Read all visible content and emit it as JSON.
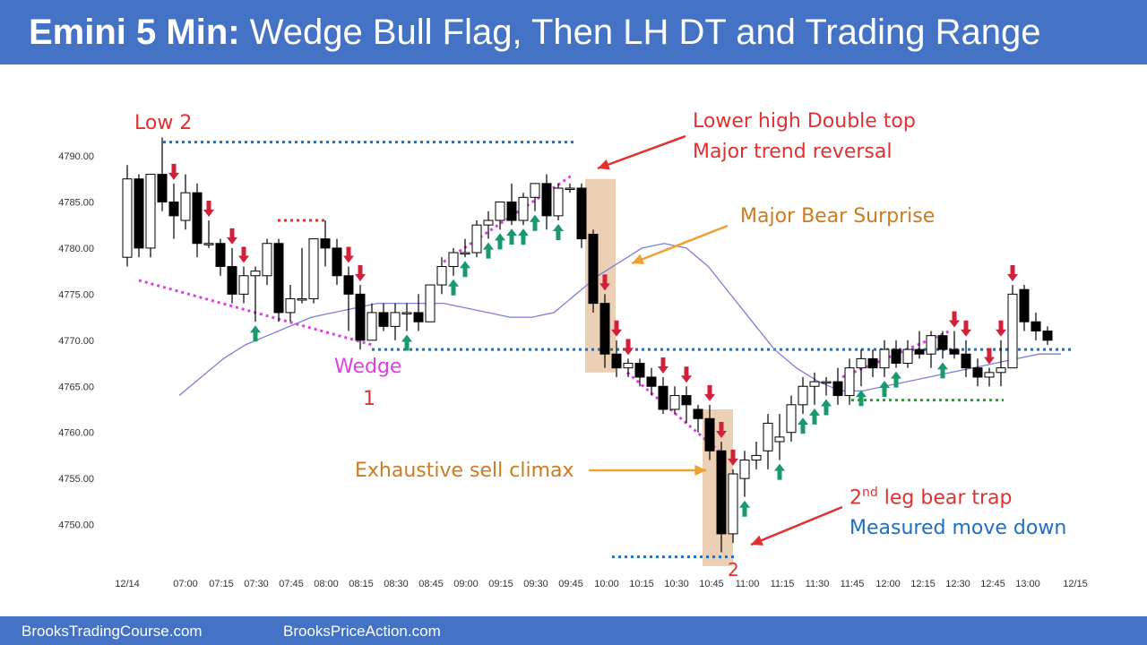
{
  "header": {
    "title_bold": "Emini 5 Min:",
    "title_rest": " Wedge Bull Flag, Then LH DT and Trading Range"
  },
  "footer": {
    "left": "BrooksTradingCourse.com",
    "right": "BrooksPriceAction.com"
  },
  "annotations": {
    "low2": "Low 2",
    "lower_high_1": "Lower high Double top",
    "lower_high_2": "Major trend reversal",
    "bear_surprise": "Major Bear Surprise",
    "wedge": "Wedge",
    "wedge_num": "1",
    "sell_climax": "Exhaustive sell climax",
    "bear_trap_pre": "2",
    "bear_trap_sup": "nd",
    "bear_trap_post": " leg bear trap",
    "measured_move": "Measured move down",
    "leg2_num": "2"
  },
  "colors": {
    "header": "#4472c4",
    "bull_arrow": "#1a9a6a",
    "bear_arrow": "#d0203a",
    "ema": "#7b7fd4",
    "wedge_line": "#e040e0",
    "level_line": "#1f6fbf",
    "support_line": "#2aa02a",
    "highlight": "#e8c8a8"
  },
  "chart_data": {
    "type": "candlestick",
    "title": "Emini 5 Min",
    "ylim": [
      4746,
      4793
    ],
    "yticks": [
      "4790.00",
      "4785.00",
      "4780.00",
      "4775.00",
      "4770.00",
      "4765.00",
      "4760.00",
      "4755.00",
      "4750.00"
    ],
    "xticks": [
      "12/14",
      "07:00",
      "07:15",
      "07:30",
      "07:45",
      "08:00",
      "08:15",
      "08:30",
      "08:45",
      "09:00",
      "09:15",
      "09:30",
      "09:45",
      "10:00",
      "10:15",
      "10:30",
      "10:45",
      "11:00",
      "11:15",
      "11:30",
      "11:45",
      "12:00",
      "12:15",
      "12:30",
      "12:45",
      "13:00",
      "12/15"
    ],
    "candles": [
      {
        "o": 4779,
        "h": 4789,
        "l": 4778,
        "c": 4787.5
      },
      {
        "o": 4787.5,
        "h": 4788,
        "l": 4779,
        "c": 4780
      },
      {
        "o": 4780,
        "h": 4788,
        "l": 4779,
        "c": 4788
      },
      {
        "o": 4788,
        "h": 4792,
        "l": 4784,
        "c": 4785
      },
      {
        "o": 4785,
        "h": 4787,
        "l": 4781,
        "c": 4783.5
      },
      {
        "o": 4783,
        "h": 4788,
        "l": 4782,
        "c": 4786
      },
      {
        "o": 4786,
        "h": 4787,
        "l": 4779,
        "c": 4780.5
      },
      {
        "o": 4780.5,
        "h": 4783,
        "l": 4780,
        "c": 4780.5
      },
      {
        "o": 4780.5,
        "h": 4781,
        "l": 4777,
        "c": 4778
      },
      {
        "o": 4778,
        "h": 4780,
        "l": 4774,
        "c": 4775
      },
      {
        "o": 4775,
        "h": 4778,
        "l": 4774,
        "c": 4777
      },
      {
        "o": 4777,
        "h": 4778,
        "l": 4772,
        "c": 4777.5
      },
      {
        "o": 4777,
        "h": 4781,
        "l": 4776,
        "c": 4780.5
      },
      {
        "o": 4780.5,
        "h": 4781,
        "l": 4772,
        "c": 4773
      },
      {
        "o": 4773,
        "h": 4776,
        "l": 4772,
        "c": 4774.5
      },
      {
        "o": 4774.5,
        "h": 4780,
        "l": 4774,
        "c": 4774.5
      },
      {
        "o": 4774.5,
        "h": 4781,
        "l": 4774,
        "c": 4781
      },
      {
        "o": 4781,
        "h": 4783,
        "l": 4778,
        "c": 4780
      },
      {
        "o": 4780,
        "h": 4781,
        "l": 4776,
        "c": 4777
      },
      {
        "o": 4777,
        "h": 4778,
        "l": 4771,
        "c": 4775
      },
      {
        "o": 4775,
        "h": 4776,
        "l": 4769,
        "c": 4770
      },
      {
        "o": 4770,
        "h": 4774,
        "l": 4770,
        "c": 4773
      },
      {
        "o": 4773,
        "h": 4774,
        "l": 4771,
        "c": 4771.5
      },
      {
        "o": 4771.5,
        "h": 4774,
        "l": 4770,
        "c": 4773
      },
      {
        "o": 4773,
        "h": 4774,
        "l": 4771,
        "c": 4773
      },
      {
        "o": 4773,
        "h": 4775,
        "l": 4771,
        "c": 4772
      },
      {
        "o": 4772,
        "h": 4776,
        "l": 4772,
        "c": 4776
      },
      {
        "o": 4776,
        "h": 4779,
        "l": 4775,
        "c": 4778
      },
      {
        "o": 4778,
        "h": 4780,
        "l": 4777,
        "c": 4779.5
      },
      {
        "o": 4779.5,
        "h": 4781,
        "l": 4779,
        "c": 4779.5
      },
      {
        "o": 4779.5,
        "h": 4783,
        "l": 4779,
        "c": 4782.5
      },
      {
        "o": 4782.5,
        "h": 4784,
        "l": 4781,
        "c": 4783
      },
      {
        "o": 4783,
        "h": 4785,
        "l": 4782,
        "c": 4785
      },
      {
        "o": 4785,
        "h": 4787,
        "l": 4782.5,
        "c": 4783
      },
      {
        "o": 4783,
        "h": 4786,
        "l": 4782.5,
        "c": 4785.5
      },
      {
        "o": 4785.5,
        "h": 4787,
        "l": 4784,
        "c": 4787
      },
      {
        "o": 4787,
        "h": 4788,
        "l": 4782,
        "c": 4783.5
      },
      {
        "o": 4783.5,
        "h": 4787,
        "l": 4783,
        "c": 4786.5
      },
      {
        "o": 4786.5,
        "h": 4787,
        "l": 4786,
        "c": 4786.5
      },
      {
        "o": 4786.5,
        "h": 4787,
        "l": 4780,
        "c": 4781
      },
      {
        "o": 4781.5,
        "h": 4782,
        "l": 4773,
        "c": 4774
      },
      {
        "o": 4774,
        "h": 4775,
        "l": 4767,
        "c": 4768.5
      },
      {
        "o": 4768.5,
        "h": 4770,
        "l": 4766,
        "c": 4767
      },
      {
        "o": 4767,
        "h": 4768,
        "l": 4766,
        "c": 4767.5
      },
      {
        "o": 4767.5,
        "h": 4768,
        "l": 4765,
        "c": 4766
      },
      {
        "o": 4766,
        "h": 4767,
        "l": 4764,
        "c": 4765
      },
      {
        "o": 4765,
        "h": 4766,
        "l": 4762,
        "c": 4762.5
      },
      {
        "o": 4762.5,
        "h": 4765,
        "l": 4762,
        "c": 4764
      },
      {
        "o": 4764,
        "h": 4765,
        "l": 4761,
        "c": 4763
      },
      {
        "o": 4762.5,
        "h": 4763,
        "l": 4760,
        "c": 4761.5
      },
      {
        "o": 4761.5,
        "h": 4763,
        "l": 4757,
        "c": 4758
      },
      {
        "o": 4758,
        "h": 4759,
        "l": 4747,
        "c": 4749
      },
      {
        "o": 4749,
        "h": 4756,
        "l": 4748,
        "c": 4755.5
      },
      {
        "o": 4755,
        "h": 4758,
        "l": 4753,
        "c": 4757
      },
      {
        "o": 4757,
        "h": 4759,
        "l": 4756,
        "c": 4757.5
      },
      {
        "o": 4758,
        "h": 4762,
        "l": 4756,
        "c": 4761
      },
      {
        "o": 4759,
        "h": 4762,
        "l": 4757,
        "c": 4759.5
      },
      {
        "o": 4760,
        "h": 4764,
        "l": 4759,
        "c": 4763
      },
      {
        "o": 4763,
        "h": 4766,
        "l": 4762,
        "c": 4765
      },
      {
        "o": 4765,
        "h": 4766.5,
        "l": 4763,
        "c": 4765.5
      },
      {
        "o": 4765.5,
        "h": 4766,
        "l": 4764,
        "c": 4765.5
      },
      {
        "o": 4765.5,
        "h": 4767,
        "l": 4763,
        "c": 4764
      },
      {
        "o": 4764,
        "h": 4768,
        "l": 4763,
        "c": 4767
      },
      {
        "o": 4767,
        "h": 4769,
        "l": 4765,
        "c": 4768
      },
      {
        "o": 4768,
        "h": 4769,
        "l": 4766,
        "c": 4767
      },
      {
        "o": 4767,
        "h": 4770,
        "l": 4766,
        "c": 4769
      },
      {
        "o": 4769,
        "h": 4770,
        "l": 4767,
        "c": 4767.5
      },
      {
        "o": 4767.5,
        "h": 4770,
        "l": 4767,
        "c": 4769
      },
      {
        "o": 4769,
        "h": 4771,
        "l": 4768,
        "c": 4768.5
      },
      {
        "o": 4768.5,
        "h": 4771,
        "l": 4767,
        "c": 4770.5
      },
      {
        "o": 4770.5,
        "h": 4771,
        "l": 4768,
        "c": 4769
      },
      {
        "o": 4769,
        "h": 4771,
        "l": 4768,
        "c": 4768.5
      },
      {
        "o": 4768.5,
        "h": 4770,
        "l": 4766,
        "c": 4767
      },
      {
        "o": 4767,
        "h": 4768,
        "l": 4765,
        "c": 4766
      },
      {
        "o": 4766,
        "h": 4767,
        "l": 4765,
        "c": 4766.5
      },
      {
        "o": 4766.5,
        "h": 4770,
        "l": 4765,
        "c": 4767
      },
      {
        "o": 4767,
        "h": 4776,
        "l": 4767,
        "c": 4775
      },
      {
        "o": 4775.5,
        "h": 4776,
        "l": 4771,
        "c": 4772
      },
      {
        "o": 4772,
        "h": 4773,
        "l": 4770,
        "c": 4771
      },
      {
        "o": 4771,
        "h": 4771.5,
        "l": 4769.5,
        "c": 4770
      }
    ],
    "ema": [
      4764,
      4766,
      4768,
      4769.5,
      4770.5,
      4771.5,
      4772.5,
      4773,
      4773.5,
      4774,
      4774,
      4774,
      4774,
      4773.5,
      4773,
      4772.5,
      4772.5,
      4773,
      4775,
      4777,
      4778.5,
      4780,
      4780.5,
      4780,
      4778,
      4775,
      4772,
      4769,
      4767,
      4765.5,
      4764.5,
      4764.5,
      4765,
      4765.5,
      4766,
      4766.5,
      4767,
      4767.5,
      4768,
      4768.5,
      4768.5
    ],
    "bull_arrow_bars": [
      11,
      24,
      28,
      29,
      31,
      32,
      33,
      34,
      35,
      37,
      53,
      56,
      58,
      59,
      60,
      63,
      65,
      66,
      70
    ],
    "bear_arrow_bars": [
      4,
      7,
      9,
      10,
      19,
      20,
      41,
      42,
      43,
      46,
      48,
      50,
      51,
      52,
      71,
      72,
      74,
      75,
      76
    ],
    "levels": {
      "low2_high": 4791.5,
      "wedge_low": 4769,
      "measured_move_low": 4746.5,
      "support": 4763.5,
      "lh_resistance": 4783
    }
  }
}
